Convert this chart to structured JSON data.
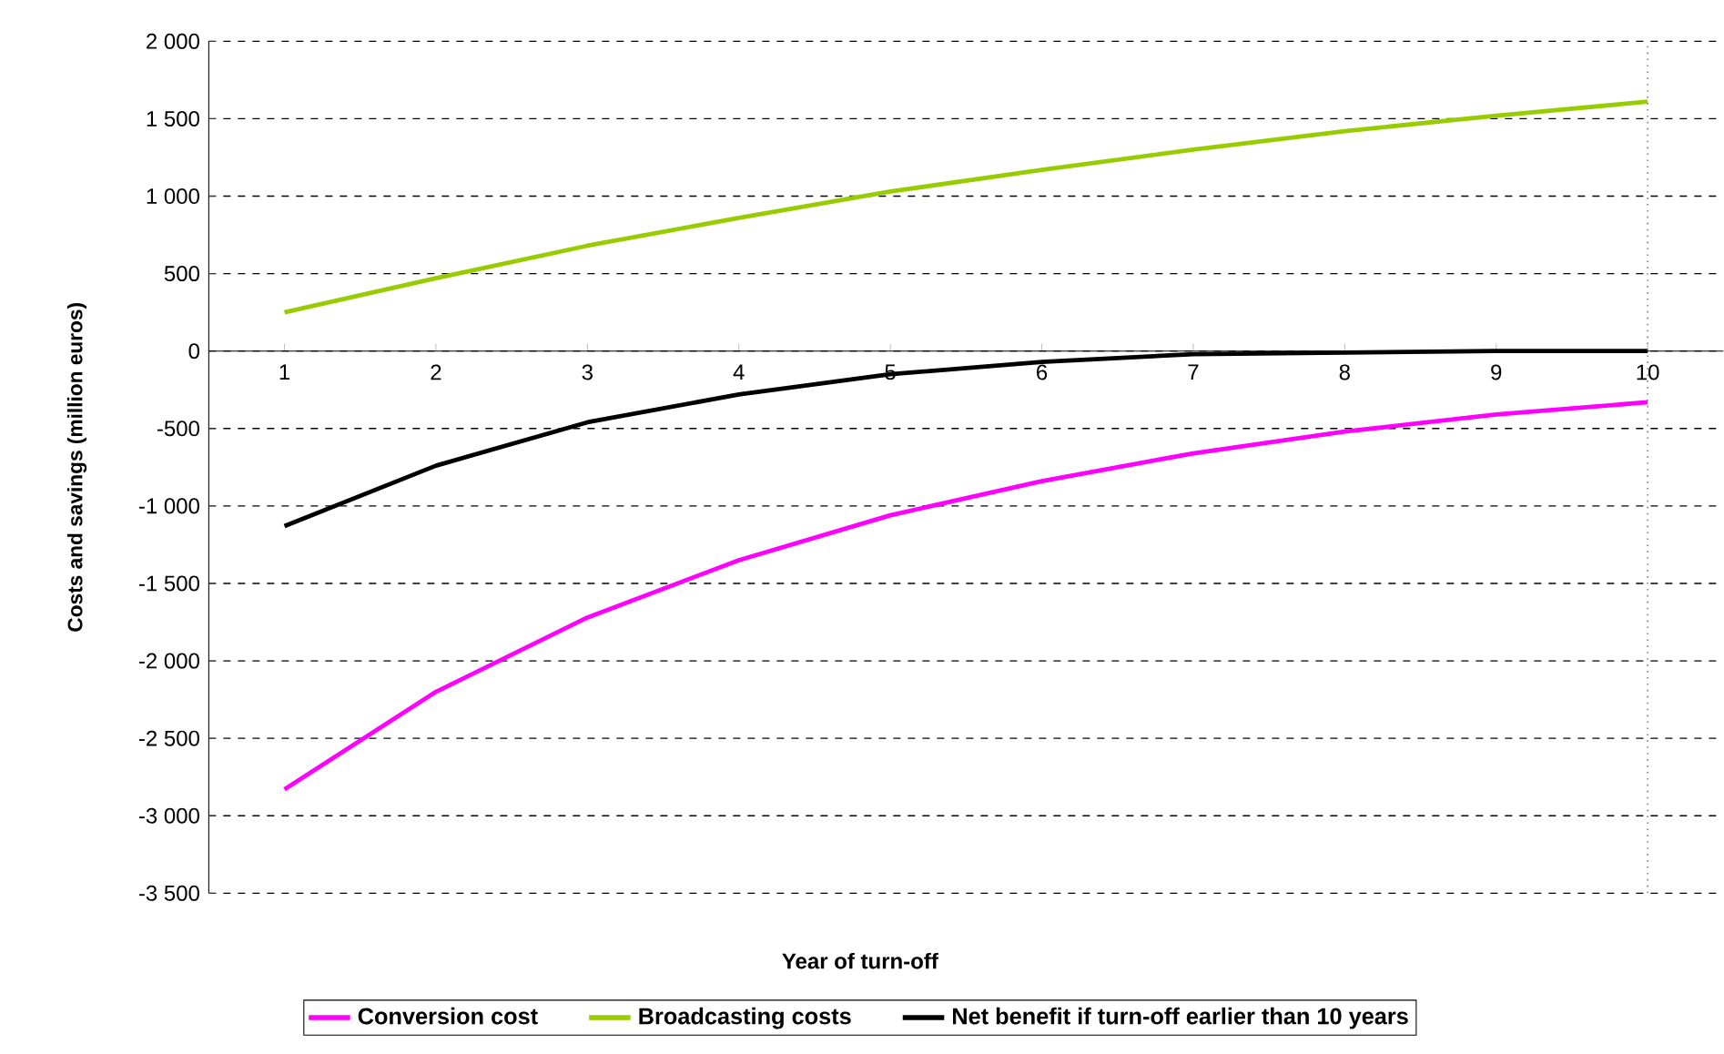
{
  "chart_data": {
    "type": "line",
    "xlabel": "Year of turn-off",
    "ylabel": "Costs and savings (million euros)",
    "x": [
      1,
      2,
      3,
      4,
      5,
      6,
      7,
      8,
      9,
      10
    ],
    "xlim": [
      0.5,
      10.5
    ],
    "xticks": [
      1,
      2,
      3,
      4,
      5,
      6,
      7,
      8,
      9,
      10
    ],
    "ylim": [
      -3500,
      2000
    ],
    "yticks": [
      {
        "value": -3500,
        "label": "-3 500"
      },
      {
        "value": -3000,
        "label": "-3 000"
      },
      {
        "value": -2500,
        "label": "-2 500"
      },
      {
        "value": -2000,
        "label": "-2 000"
      },
      {
        "value": -1500,
        "label": "-1 500"
      },
      {
        "value": -1000,
        "label": "-1 000"
      },
      {
        "value": -500,
        "label": "-500"
      },
      {
        "value": 0,
        "label": "0"
      },
      {
        "value": 500,
        "label": "500"
      },
      {
        "value": 1000,
        "label": "1 000"
      },
      {
        "value": 1500,
        "label": "1 500"
      },
      {
        "value": 2000,
        "label": "2 000"
      }
    ],
    "grid": "y",
    "legend": "bottom",
    "marker": "none",
    "line_style": "solid",
    "ref_lines": [
      {
        "axis": "x",
        "value": 10,
        "color": "#808080",
        "line_style": "dotted"
      }
    ],
    "series": [
      {
        "name": "Conversion cost",
        "color": "#ff00ff",
        "values": [
          -2830,
          -2200,
          -1720,
          -1350,
          -1060,
          -840,
          -660,
          -520,
          -410,
          -330
        ]
      },
      {
        "name": "Broadcasting costs",
        "color": "#99cc00",
        "values": [
          250,
          470,
          680,
          860,
          1030,
          1170,
          1300,
          1420,
          1520,
          1610
        ]
      },
      {
        "name": "Net benefit if turn-off earlier than 10 years",
        "color": "#000000",
        "values": [
          -1130,
          -740,
          -460,
          -280,
          -150,
          -70,
          -20,
          -10,
          0,
          0
        ]
      }
    ]
  }
}
